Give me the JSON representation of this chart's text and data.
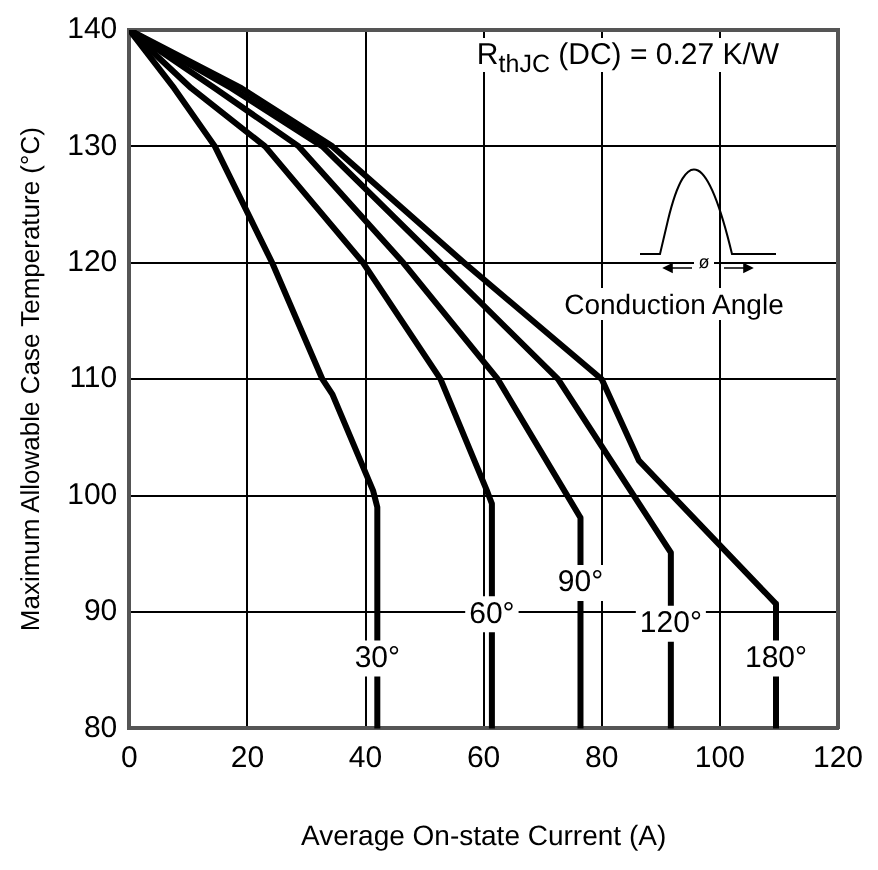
{
  "chart_data": {
    "type": "line",
    "xlabel": "Average On-state Current (A)",
    "ylabel": "Maximum Allowable Case Temperature (°C)",
    "xlim": [
      0,
      120
    ],
    "xticks": [
      0,
      20,
      40,
      60,
      80,
      100,
      120
    ],
    "ylim": [
      80,
      140
    ],
    "yticks": [
      80,
      90,
      100,
      110,
      120,
      130,
      140
    ],
    "grid": true,
    "legend": false,
    "marker": "none",
    "line_style": "solid",
    "series": [
      {
        "name": "30°",
        "color": "#000000",
        "x": [
          0,
          7.6,
          14.5,
          24.2,
          32.7,
          34.4,
          41.3,
          42,
          42
        ],
        "values": [
          140,
          135,
          130,
          120,
          110,
          108.7,
          100.4,
          99,
          80
        ]
      },
      {
        "name": "60°",
        "color": "#000000",
        "x": [
          0,
          10.5,
          23,
          39.6,
          52.7,
          60.5,
          61.4,
          61.4
        ],
        "values": [
          140,
          135,
          130,
          120,
          110,
          100.5,
          99.3,
          80
        ]
      },
      {
        "name": "90°",
        "color": "#000000",
        "x": [
          0,
          14.5,
          28.7,
          46.4,
          62.4,
          76.4,
          76.4
        ],
        "values": [
          140,
          135,
          130,
          120,
          110,
          98.1,
          80
        ]
      },
      {
        "name": "120°",
        "color": "#000000",
        "x": [
          0,
          17.3,
          32.7,
          52.7,
          72.6,
          91.7,
          91.7
        ],
        "values": [
          140,
          135,
          130,
          120,
          110,
          95.1,
          80
        ]
      },
      {
        "name": "180°",
        "color": "#000000",
        "x": [
          0,
          19,
          34.4,
          56.7,
          80,
          86.3,
          109.5,
          109.5
        ],
        "values": [
          140,
          135,
          130,
          120,
          110,
          103,
          90.7,
          80
        ]
      }
    ],
    "annotations": [
      "R$_{thJC}$ (DC) = 0.27 K/W",
      "ø",
      "Conduction Angle"
    ]
  }
}
